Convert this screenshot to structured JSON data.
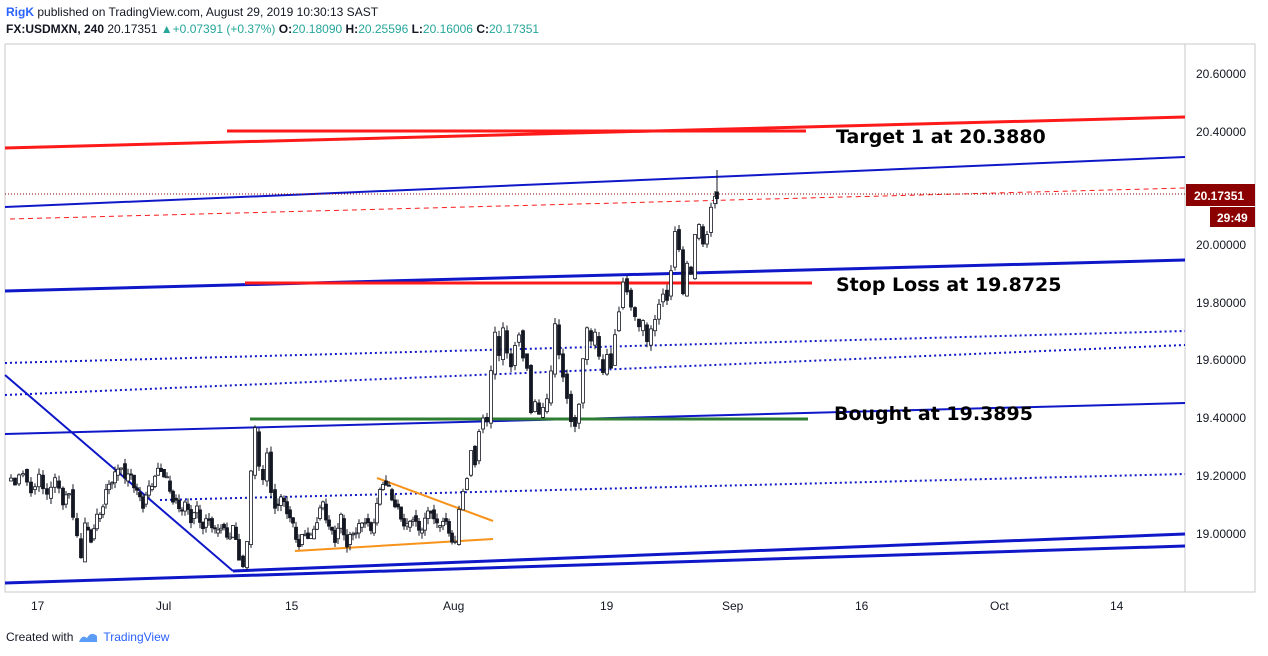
{
  "header": {
    "author": "RigK",
    "published": "published on TradingView.com, August 29, 2019 10:30:13 SAST",
    "symbol": "FX:USDMXN, 240",
    "last": "20.17351",
    "arrow": "▲",
    "change": "+0.07391 (+0.37%)",
    "o_label": "O:",
    "o_value": "20.18090",
    "h_label": "H:",
    "h_value": "20.25596",
    "l_label": "L:",
    "l_value": "20.16006",
    "c_label": "C:",
    "c_value": "20.17351"
  },
  "footer": {
    "created_with": "Created with",
    "brand": "TradingView"
  },
  "colors": {
    "up": "#26a69a",
    "candle": "#131722",
    "channel": "#0f18c8",
    "resistance": "#ff1a1a",
    "entry": "#2e7d32",
    "triangle": "#f7931a",
    "price_tag": "#8b0000"
  },
  "chart_data": {
    "type": "candlestick",
    "price_label": "20.17351",
    "countdown": "29:49",
    "ylim": [
      18.82,
      20.72
    ],
    "x_ticks": [
      "17",
      "Jul",
      "15",
      "Aug",
      "19",
      "Sep",
      "16",
      "Oct",
      "14"
    ],
    "y_ticks": [
      "20.60000",
      "20.40000",
      "20.00000",
      "19.80000",
      "19.60000",
      "19.40000",
      "19.20000",
      "19.00000"
    ],
    "annotations": [
      {
        "text": "Target 1 at 20.3880",
        "value": 20.388
      },
      {
        "text": "Stop Loss at 19.8725",
        "value": 19.8725
      },
      {
        "text": "Bought at 19.3895",
        "value": 19.3895
      }
    ],
    "price_path": [
      [
        0,
        19.18
      ],
      [
        8,
        19.17
      ],
      [
        16,
        19.22
      ],
      [
        24,
        19.15
      ],
      [
        32,
        19.2
      ],
      [
        40,
        19.12
      ],
      [
        48,
        19.18
      ],
      [
        56,
        19.1
      ],
      [
        62,
        19.15
      ],
      [
        66,
        19.05
      ],
      [
        70,
        18.98
      ],
      [
        74,
        18.9
      ],
      [
        78,
        19.02
      ],
      [
        84,
        18.98
      ],
      [
        90,
        19.05
      ],
      [
        96,
        19.1
      ],
      [
        102,
        19.17
      ],
      [
        108,
        19.2
      ],
      [
        114,
        19.24
      ],
      [
        118,
        19.18
      ],
      [
        124,
        19.2
      ],
      [
        130,
        19.14
      ],
      [
        136,
        19.1
      ],
      [
        142,
        19.15
      ],
      [
        148,
        19.2
      ],
      [
        154,
        19.22
      ],
      [
        160,
        19.18
      ],
      [
        166,
        19.12
      ],
      [
        172,
        19.08
      ],
      [
        178,
        19.1
      ],
      [
        184,
        19.05
      ],
      [
        190,
        19.08
      ],
      [
        196,
        19.02
      ],
      [
        202,
        19.05
      ],
      [
        208,
        19.0
      ],
      [
        214,
        19.03
      ],
      [
        220,
        18.98
      ],
      [
        226,
        19.02
      ],
      [
        232,
        18.92
      ],
      [
        236,
        18.88
      ],
      [
        240,
        18.96
      ],
      [
        244,
        19.2
      ],
      [
        248,
        19.35
      ],
      [
        252,
        19.22
      ],
      [
        256,
        19.18
      ],
      [
        260,
        19.28
      ],
      [
        264,
        19.15
      ],
      [
        268,
        19.1
      ],
      [
        274,
        19.12
      ],
      [
        280,
        19.08
      ],
      [
        286,
        19.02
      ],
      [
        292,
        18.96
      ],
      [
        298,
        19.0
      ],
      [
        304,
        18.98
      ],
      [
        310,
        19.05
      ],
      [
        316,
        19.1
      ],
      [
        322,
        19.02
      ],
      [
        328,
        18.98
      ],
      [
        334,
        19.05
      ],
      [
        340,
        18.96
      ],
      [
        346,
        19.0
      ],
      [
        352,
        19.02
      ],
      [
        358,
        19.05
      ],
      [
        364,
        19.0
      ],
      [
        370,
        19.1
      ],
      [
        376,
        19.18
      ],
      [
        382,
        19.15
      ],
      [
        388,
        19.1
      ],
      [
        394,
        19.05
      ],
      [
        400,
        19.02
      ],
      [
        406,
        19.06
      ],
      [
        412,
        19.0
      ],
      [
        418,
        19.05
      ],
      [
        424,
        19.08
      ],
      [
        430,
        19.02
      ],
      [
        436,
        19.05
      ],
      [
        442,
        19.0
      ],
      [
        448,
        18.96
      ],
      [
        452,
        19.08
      ],
      [
        456,
        19.15
      ],
      [
        460,
        19.2
      ],
      [
        464,
        19.3
      ],
      [
        468,
        19.25
      ],
      [
        472,
        19.36
      ],
      [
        476,
        19.4
      ],
      [
        480,
        19.38
      ],
      [
        484,
        19.55
      ],
      [
        488,
        19.68
      ],
      [
        492,
        19.6
      ],
      [
        496,
        19.7
      ],
      [
        500,
        19.62
      ],
      [
        504,
        19.58
      ],
      [
        508,
        19.66
      ],
      [
        512,
        19.7
      ],
      [
        516,
        19.62
      ],
      [
        520,
        19.58
      ],
      [
        524,
        19.42
      ],
      [
        528,
        19.45
      ],
      [
        532,
        19.4
      ],
      [
        536,
        19.42
      ],
      [
        540,
        19.45
      ],
      [
        544,
        19.55
      ],
      [
        548,
        19.72
      ],
      [
        552,
        19.62
      ],
      [
        556,
        19.55
      ],
      [
        560,
        19.48
      ],
      [
        564,
        19.4
      ],
      [
        568,
        19.38
      ],
      [
        572,
        19.45
      ],
      [
        576,
        19.6
      ],
      [
        580,
        19.7
      ],
      [
        584,
        19.65
      ],
      [
        588,
        19.68
      ],
      [
        592,
        19.6
      ],
      [
        596,
        19.55
      ],
      [
        600,
        19.62
      ],
      [
        604,
        19.58
      ],
      [
        608,
        19.7
      ],
      [
        612,
        19.78
      ],
      [
        616,
        19.88
      ],
      [
        620,
        19.84
      ],
      [
        624,
        19.78
      ],
      [
        628,
        19.74
      ],
      [
        632,
        19.7
      ],
      [
        636,
        19.72
      ],
      [
        640,
        19.65
      ],
      [
        644,
        19.7
      ],
      [
        648,
        19.74
      ],
      [
        652,
        19.8
      ],
      [
        656,
        19.84
      ],
      [
        660,
        19.82
      ],
      [
        664,
        19.92
      ],
      [
        668,
        20.05
      ],
      [
        672,
        19.98
      ],
      [
        676,
        19.82
      ],
      [
        680,
        19.92
      ],
      [
        684,
        19.88
      ],
      [
        688,
        20.02
      ],
      [
        692,
        20.06
      ],
      [
        696,
        20.0
      ],
      [
        700,
        20.04
      ],
      [
        704,
        20.14
      ],
      [
        708,
        20.18
      ],
      [
        710,
        20.17
      ]
    ]
  }
}
